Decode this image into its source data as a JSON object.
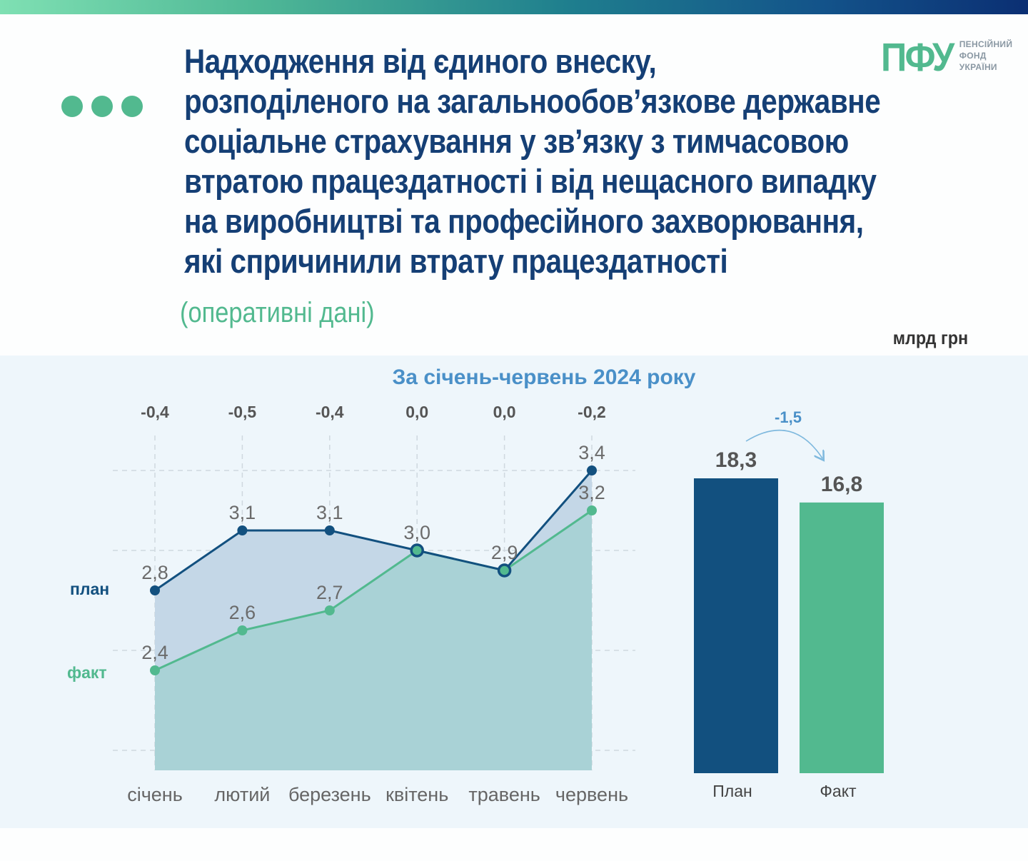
{
  "header": {
    "title_lines": [
      "Надходження від єдиного внеску,",
      "розподіленого на загальнообов’язкове державне",
      "соціальне страхування у зв’язку з тимчасовою",
      "втратою працездатності і від нещасного випадку",
      "на виробництві та професійного захворювання,",
      "які спричинили втрату працездатності"
    ],
    "subtitle": "(оперативні дані)",
    "unit": "млрд грн"
  },
  "logo": {
    "mark": "ПФУ",
    "text_lines": [
      "ПЕНСІЙНИЙ",
      "ФОНД",
      "УКРАЇНИ"
    ]
  },
  "colors": {
    "plan": "#12507f",
    "fact": "#52b98f",
    "title": "#153f75",
    "chart_title": "#4a90c8"
  },
  "chart_data": [
    {
      "type": "line",
      "title": "За січень-червень 2024 року",
      "categories": [
        "січень",
        "лютий",
        "березень",
        "квітень",
        "травень",
        "червень"
      ],
      "series": [
        {
          "name": "план",
          "values": [
            2.8,
            3.1,
            3.1,
            3.0,
            2.9,
            3.4
          ],
          "labels": [
            "2,8",
            "3,1",
            "3,1",
            "3,0",
            "2,9",
            "3,4"
          ]
        },
        {
          "name": "факт",
          "values": [
            2.4,
            2.6,
            2.7,
            3.0,
            2.9,
            3.2
          ],
          "labels": [
            "2,4",
            "2,6",
            "2,7",
            "",
            "",
            "3,2"
          ]
        }
      ],
      "differences": [
        "-0,4",
        "-0,5",
        "-0,4",
        "0,0",
        "0,0",
        "-0,2"
      ],
      "area_fill": true,
      "grid": "dashed",
      "ylim": [
        1.9,
        3.5
      ]
    },
    {
      "type": "bar",
      "categories": [
        "План",
        "Факт"
      ],
      "values": [
        18.3,
        16.8
      ],
      "labels": [
        "18,3",
        "16,8"
      ],
      "difference": "-1,5",
      "ylim": [
        0,
        18.3
      ]
    }
  ]
}
